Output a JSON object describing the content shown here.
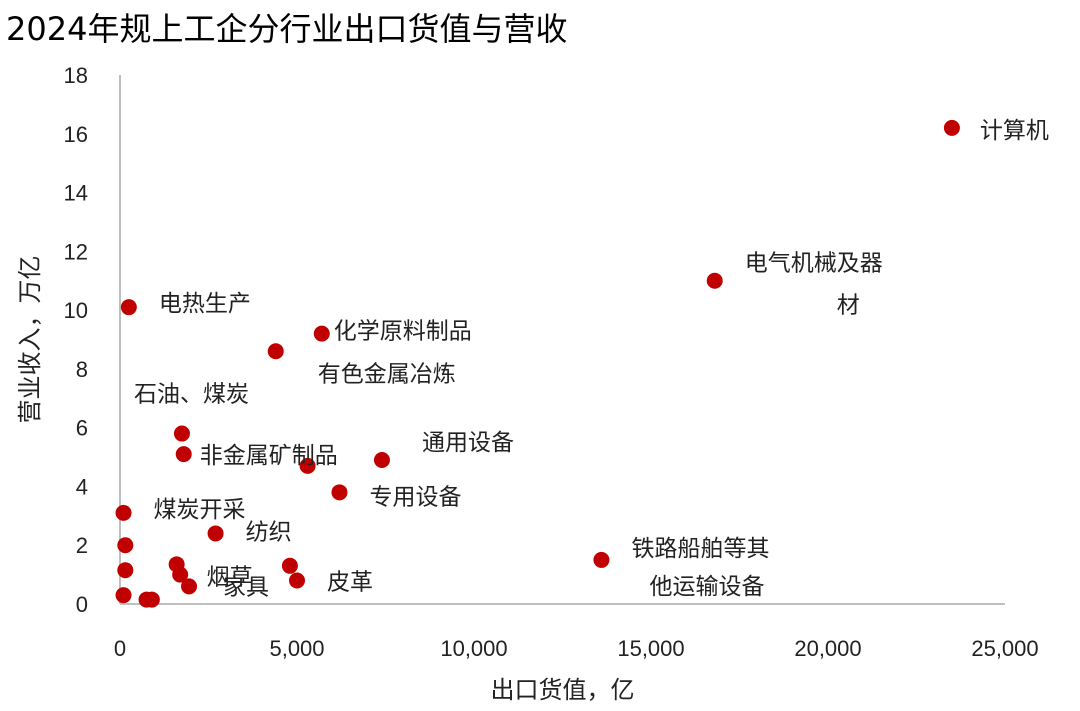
{
  "title": "2024年规上工企分行业出口货值与营收",
  "chart_data": {
    "type": "scatter",
    "title": "2024年规上工企分行业出口货值与营收",
    "xlabel": "出口货值，亿",
    "ylabel": "营业收入，万亿",
    "xlim": [
      0,
      25000
    ],
    "ylim": [
      0,
      18
    ],
    "x_ticks": [
      "0",
      "5,000",
      "10,000",
      "15,000",
      "20,000",
      "25,000"
    ],
    "y_ticks": [
      "0",
      "2",
      "4",
      "6",
      "8",
      "10",
      "12",
      "14",
      "16",
      "18"
    ],
    "grid": false,
    "legend": "none",
    "marker_color": "#c00000",
    "points": [
      {
        "x": 23500,
        "y": 16.2,
        "label": [
          "计算机"
        ]
      },
      {
        "x": 16800,
        "y": 11.0,
        "label": [
          "电气机械及器",
          "材"
        ]
      },
      {
        "x": 250,
        "y": 10.1,
        "label": [
          "电热生产"
        ]
      },
      {
        "x": 5700,
        "y": 9.2,
        "label": [
          "化学原料制品"
        ]
      },
      {
        "x": 4400,
        "y": 8.6,
        "label": [
          "有色金属冶炼"
        ]
      },
      {
        "x": 1750,
        "y": 5.8,
        "label": [
          "石油、煤炭"
        ]
      },
      {
        "x": 1800,
        "y": 5.1,
        "label": [
          "非金属矿制品"
        ]
      },
      {
        "x": 7400,
        "y": 4.9,
        "label": [
          "通用设备"
        ]
      },
      {
        "x": 5300,
        "y": 4.7,
        "label": []
      },
      {
        "x": 6200,
        "y": 3.8,
        "label": [
          "专用设备"
        ]
      },
      {
        "x": 100,
        "y": 3.1,
        "label": [
          "煤炭开采"
        ]
      },
      {
        "x": 2700,
        "y": 2.4,
        "label": [
          "纺织"
        ]
      },
      {
        "x": 150,
        "y": 2.0,
        "label": []
      },
      {
        "x": 13600,
        "y": 1.5,
        "label": [
          "铁路船舶等其",
          "他运输设备"
        ]
      },
      {
        "x": 1600,
        "y": 1.35,
        "label": [
          "烟草"
        ]
      },
      {
        "x": 4800,
        "y": 1.3,
        "label": []
      },
      {
        "x": 150,
        "y": 1.15,
        "label": []
      },
      {
        "x": 1700,
        "y": 1.0,
        "label": []
      },
      {
        "x": 5000,
        "y": 0.8,
        "label": [
          "皮革"
        ]
      },
      {
        "x": 1950,
        "y": 0.6,
        "label": [
          "家具"
        ]
      },
      {
        "x": 100,
        "y": 0.3,
        "label": []
      },
      {
        "x": 750,
        "y": 0.15,
        "label": []
      },
      {
        "x": 900,
        "y": 0.15,
        "label": []
      }
    ]
  }
}
